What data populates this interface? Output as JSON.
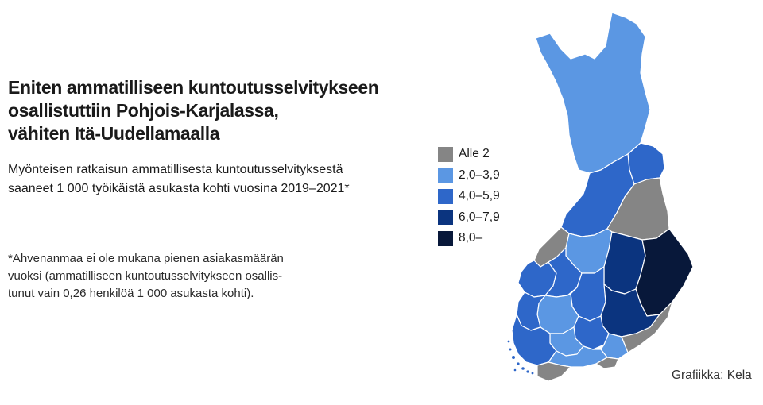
{
  "title_lines": [
    "Eniten ammatilliseen kuntoutusselvitykseen",
    "osallistuttiin Pohjois-Karjalassa,",
    "vähiten Itä-Uudellamaalla"
  ],
  "subtitle_lines": [
    "Myönteisen ratkaisun ammatillisesta kuntoutusselvityksestä",
    "saaneet 1 000 työikäistä asukasta kohti vuosina 2019–2021*"
  ],
  "note_lines": [
    "*Ahvenanmaa ei ole mukana pienen asiakasmäärän",
    "vuoksi (ammatilliseen kuntoutusselvitykseen osallis-",
    "tunut vain 0,26 henkilöä 1 000 asukasta kohti)."
  ],
  "legend": [
    {
      "label": "Alle 2",
      "color": "#858585"
    },
    {
      "label": "2,0–3,9",
      "color": "#5b97e3"
    },
    {
      "label": "4,0–5,9",
      "color": "#2e67c9"
    },
    {
      "label": "6,0–7,9",
      "color": "#0b347f"
    },
    {
      "label": "8,0–",
      "color": "#08183a"
    }
  ],
  "credit": "Grafiikka: Kela"
}
